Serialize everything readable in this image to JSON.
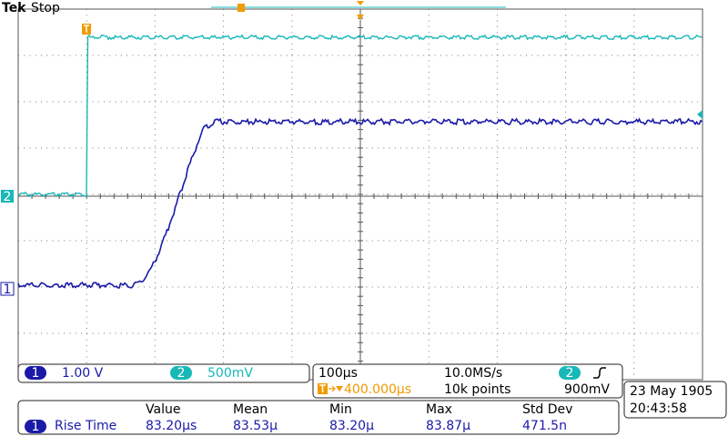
{
  "header": {
    "brand": "Tek",
    "status": "Stop"
  },
  "channels": [
    {
      "number": "1",
      "scale": "1.00 V"
    },
    {
      "number": "2",
      "scale": "500mV"
    }
  ],
  "timebase": {
    "scale": "100µs",
    "sample_rate": "10.0MS/s",
    "trigger_position": "400.000µs",
    "record_length": "10k points"
  },
  "trigger": {
    "source": "2",
    "level": "900mV"
  },
  "datetime": {
    "date": "23 May 1905",
    "time": "20:43:58"
  },
  "measurements": {
    "columns": [
      "Value",
      "Mean",
      "Min",
      "Max",
      "Std Dev"
    ],
    "rows": [
      {
        "channel": "1",
        "name": "Rise Time",
        "cells": [
          "83.20µs",
          "83.53µ",
          "83.20µ",
          "83.87µ",
          "471.5n"
        ]
      }
    ]
  }
}
